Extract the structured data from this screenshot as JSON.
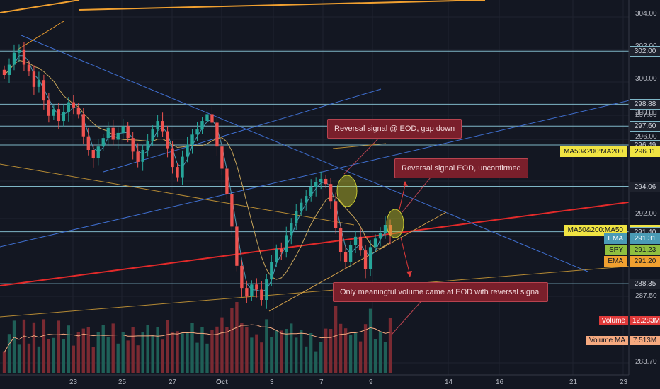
{
  "chart_data": {
    "type": "candlestick",
    "symbol": "SPY",
    "y_axis": {
      "min": 283.0,
      "max": 305.0,
      "tick_labels": [
        "304.00",
        "302.00",
        "300.00",
        "298.00",
        "297.00",
        "296.00",
        "292.00",
        "290.00",
        "287.50",
        "283.70"
      ]
    },
    "x_axis": {
      "tick_labels": [
        "23",
        "25",
        "27",
        "Oct",
        "3",
        "7",
        "9",
        "14",
        "16",
        "21",
        "23"
      ]
    },
    "horizontal_levels": [
      302.0,
      298.88,
      297.6,
      296.49,
      294.06,
      291.4,
      288.35
    ],
    "price_tags": [
      {
        "label": "",
        "value": "302.00",
        "price": 302.0,
        "bg": "#1e222d",
        "border": "#7fb7c7",
        "fg": "#d1d4dc"
      },
      {
        "label": "",
        "value": "298.88",
        "price": 298.88,
        "bg": "#1e222d",
        "border": "#7fb7c7",
        "fg": "#d1d4dc"
      },
      {
        "label": "",
        "value": "297.60",
        "price": 297.6,
        "bg": "#1e222d",
        "border": "#7fb7c7",
        "fg": "#d1d4dc"
      },
      {
        "label": "",
        "value": "296.49",
        "price": 296.49,
        "bg": "#1e222d",
        "border": "#7fb7c7",
        "fg": "#d1d4dc"
      },
      {
        "label": "MA50&200:MA200",
        "value": "296.11",
        "price": 296.11,
        "bg": "#f0e442",
        "border": "#f0e442",
        "fg": "#131722"
      },
      {
        "label": "",
        "value": "294.06",
        "price": 294.06,
        "bg": "#1e222d",
        "border": "#7fb7c7",
        "fg": "#d1d4dc"
      },
      {
        "label": "MA50&200:MA50",
        "value": "291.51",
        "price": 291.51,
        "bg": "#f0e442",
        "border": "#f0e442",
        "fg": "#131722"
      },
      {
        "label": "",
        "value": "291.40",
        "price": 291.4,
        "bg": "#1e222d",
        "border": "#7fb7c7",
        "fg": "#d1d4dc"
      },
      {
        "label": "EMA",
        "value": "291.31",
        "price": 291.0,
        "bg": "#4a9bb5",
        "border": "#4a9bb5",
        "fg": "#ffffff"
      },
      {
        "label": "SPY",
        "value": "291.23",
        "price": 290.35,
        "bg": "#8fbf3f",
        "border": "#8fbf3f",
        "fg": "#131722"
      },
      {
        "label": "EMA",
        "value": "291.20",
        "price": 289.7,
        "bg": "#f0a030",
        "border": "#f0a030",
        "fg": "#131722"
      },
      {
        "label": "",
        "value": "288.35",
        "price": 288.35,
        "bg": "#1e222d",
        "border": "#7fb7c7",
        "fg": "#d1d4dc"
      }
    ],
    "volume_tags": [
      {
        "label": "Volume",
        "value": "12.283M",
        "bg": "#e03a3a",
        "fg": "#ffffff"
      },
      {
        "label": "Volume MA",
        "value": "7.513M",
        "bg": "#f5a97f",
        "fg": "#131722"
      }
    ],
    "annotations": [
      "Reversal signal @ EOD, gap down",
      "Reversal signal EOD, unconfirmed",
      "Only meaningful volume came at EOD with reversal signal"
    ],
    "candles_close": [
      300.6,
      301.2,
      301.9,
      302.1,
      301.2,
      300.8,
      299.9,
      300.3,
      299.1,
      298.2,
      298.6,
      297.9,
      298.4,
      299.0,
      298.7,
      298.3,
      297.0,
      296.2,
      295.7,
      296.4,
      296.9,
      297.5,
      296.8,
      297.2,
      297.6,
      296.9,
      296.1,
      295.5,
      296.2,
      296.7,
      297.4,
      297.9,
      297.3,
      296.3,
      295.2,
      294.6,
      295.8,
      296.5,
      297.1,
      297.4,
      297.9,
      298.3,
      297.8,
      296.4,
      295.1,
      293.6,
      291.7,
      289.4,
      288.1,
      287.6,
      288.3,
      288.0,
      287.4,
      288.6,
      289.6,
      290.4,
      290.2,
      291.2,
      291.9,
      292.6,
      293.1,
      293.5,
      294.0,
      294.3,
      294.5,
      294.2,
      293.2,
      291.6,
      290.2,
      289.6,
      290.6,
      291.1,
      290.3,
      289.2,
      290.5,
      291.0,
      291.3,
      291.8,
      291.2
    ]
  }
}
